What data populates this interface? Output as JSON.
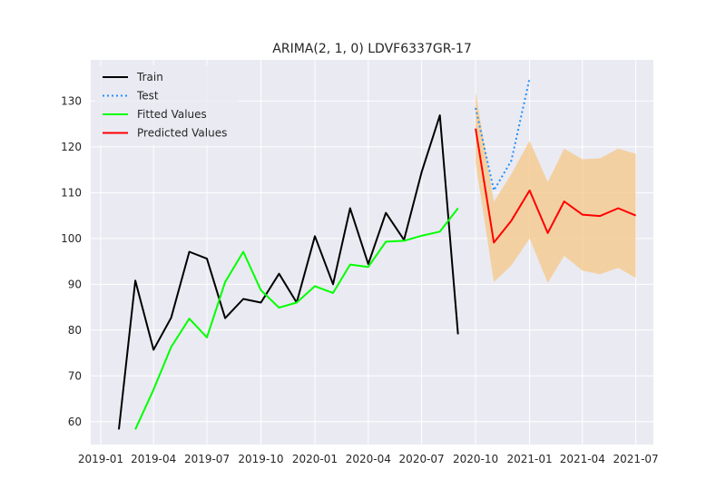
{
  "chart_data": {
    "type": "line",
    "title": "ARIMA(2, 1, 0) LDVF6337GR-17",
    "xlabel": "",
    "ylabel": "",
    "x_ticks": [
      "2019-01",
      "2019-04",
      "2019-07",
      "2019-10",
      "2020-01",
      "2020-04",
      "2020-07",
      "2020-10",
      "2021-01",
      "2021-04",
      "2021-07"
    ],
    "y_ticks": [
      60,
      70,
      80,
      90,
      100,
      110,
      120,
      130
    ],
    "xlim": [
      "2018-12-15",
      "2021-07-31"
    ],
    "ylim": [
      55,
      139
    ],
    "grid": true,
    "legend_position": "top-left",
    "series": [
      {
        "name": "Train",
        "color": "#000000",
        "style": "solid",
        "x": [
          "2019-02-01",
          "2019-03-01",
          "2019-04-01",
          "2019-05-01",
          "2019-06-01",
          "2019-07-01",
          "2019-08-01",
          "2019-09-01",
          "2019-10-01",
          "2019-11-01",
          "2019-12-01",
          "2020-01-01",
          "2020-02-01",
          "2020-03-01",
          "2020-04-01",
          "2020-05-01",
          "2020-06-01",
          "2020-07-01",
          "2020-08-01",
          "2020-09-01"
        ],
        "y": [
          58.3,
          90.8,
          75.7,
          82.7,
          97.1,
          95.6,
          82.6,
          86.8,
          86.0,
          92.3,
          86.0,
          100.5,
          90.0,
          106.6,
          94.4,
          105.6,
          99.7,
          114.5,
          126.9,
          79.1
        ]
      },
      {
        "name": "Test",
        "color": "#1e90ff",
        "style": "dotted",
        "x": [
          "2020-10-01",
          "2020-11-01",
          "2020-12-01",
          "2021-01-01"
        ],
        "y": [
          128.5,
          110.5,
          117.0,
          135.0
        ]
      },
      {
        "name": "Fitted Values",
        "color": "#00ff00",
        "style": "solid",
        "x": [
          "2019-03-01",
          "2019-04-01",
          "2019-05-01",
          "2019-06-01",
          "2019-07-01",
          "2019-08-01",
          "2019-09-01",
          "2019-10-01",
          "2019-11-01",
          "2019-12-01",
          "2020-01-01",
          "2020-02-01",
          "2020-03-01",
          "2020-04-01",
          "2020-05-01",
          "2020-06-01",
          "2020-07-01",
          "2020-08-01",
          "2020-09-01"
        ],
        "y": [
          58.3,
          67.0,
          76.3,
          82.5,
          78.4,
          90.5,
          97.1,
          88.7,
          84.9,
          86.0,
          89.6,
          88.1,
          94.3,
          93.8,
          99.3,
          99.5,
          100.6,
          101.5,
          106.6
        ]
      },
      {
        "name": "Predicted Values",
        "color": "#ff0000",
        "style": "solid",
        "x": [
          "2020-10-01",
          "2020-11-01",
          "2020-12-01",
          "2021-01-01",
          "2021-02-01",
          "2021-03-01",
          "2021-04-01",
          "2021-05-01",
          "2021-06-01",
          "2021-07-01"
        ],
        "y": [
          124.0,
          99.1,
          103.9,
          110.5,
          101.2,
          108.1,
          105.2,
          104.9,
          106.6,
          105.0
        ]
      }
    ],
    "confidence_band": {
      "color": "#f5c785",
      "x": [
        "2020-10-01",
        "2020-11-01",
        "2020-12-01",
        "2021-01-01",
        "2021-02-01",
        "2021-03-01",
        "2021-04-01",
        "2021-05-01",
        "2021-06-01",
        "2021-07-01"
      ],
      "lower": [
        116.5,
        90.5,
        94.1,
        100.0,
        90.3,
        96.2,
        93.0,
        92.2,
        93.6,
        91.4
      ],
      "upper": [
        132.1,
        108.0,
        114.1,
        121.3,
        112.3,
        119.6,
        117.3,
        117.5,
        119.6,
        118.5
      ]
    }
  }
}
